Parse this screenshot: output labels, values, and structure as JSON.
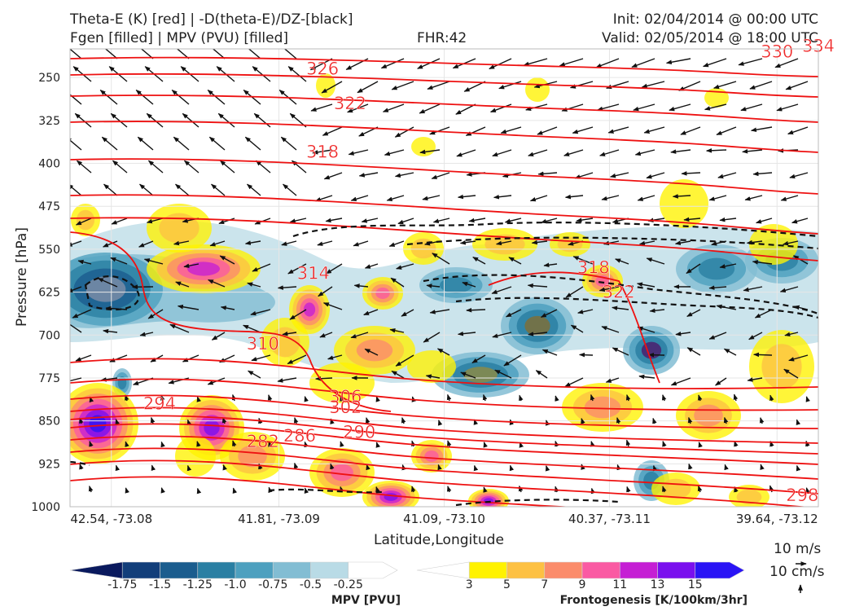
{
  "titles": {
    "top_left_1": "Theta-E (K) [red] | -D(theta-E)/DZ-[black]",
    "top_left_2": "Fgen [filled] | MPV (PVU) [filled]",
    "fhr": "FHR:42",
    "init": "Init: 02/04/2014 @ 00:00 UTC",
    "valid": "Valid: 02/05/2014 @ 18:00 UTC"
  },
  "colors": {
    "theta_e": "#ee1111",
    "mpv_scale": [
      "#0a1a5e",
      "#123e7a",
      "#1b5d8e",
      "#2a7fa3",
      "#4da0bf",
      "#82bdd3",
      "#b9dbe6",
      "#ffffff"
    ],
    "fgen_scale": [
      "#ffffff",
      "#fff200",
      "#fdc143",
      "#fb8c6b",
      "#fa5aa3",
      "#c51fd4",
      "#7a10ee",
      "#2a14f5"
    ]
  },
  "chart_data": {
    "type": "cross-section",
    "xlabel": "Latitude,Longitude",
    "ylabel": "Pressure [hPa]",
    "x_ticks": [
      "42.54, -73.08",
      "41.81, -73.09",
      "41.09, -73.10",
      "40.37, -73.11",
      "39.64, -73.12"
    ],
    "y_ticks": [
      250,
      325,
      400,
      475,
      550,
      625,
      700,
      775,
      850,
      925,
      1000
    ],
    "ylim": [
      200,
      1000
    ],
    "theta_e_labels": [
      {
        "value": 334,
        "at": [
          39.46,
          205
        ]
      },
      {
        "value": 330,
        "at": [
          39.64,
          215
        ]
      },
      {
        "value": 326,
        "at": [
          41.62,
          245
        ]
      },
      {
        "value": 322,
        "at": [
          41.5,
          305
        ]
      },
      {
        "value": 318,
        "at": [
          41.62,
          390
        ]
      },
      {
        "value": 318,
        "at": [
          40.44,
          592
        ]
      },
      {
        "value": 314,
        "at": [
          41.66,
          602
        ]
      },
      {
        "value": 322,
        "at": [
          40.33,
          635
        ]
      },
      {
        "value": 310,
        "at": [
          41.88,
          725
        ]
      },
      {
        "value": 306,
        "at": [
          41.52,
          818
        ]
      },
      {
        "value": 302,
        "at": [
          41.52,
          836
        ]
      },
      {
        "value": 294,
        "at": [
          42.33,
          830
        ]
      },
      {
        "value": 290,
        "at": [
          41.46,
          880
        ]
      },
      {
        "value": 286,
        "at": [
          41.72,
          886
        ]
      },
      {
        "value": 282,
        "at": [
          41.88,
          896
        ]
      },
      {
        "value": 298,
        "at": [
          39.53,
          990
        ]
      }
    ],
    "mpv_colorbar": {
      "label": "MPV [PVU]",
      "ticks": [
        "-1.75",
        "-1.5",
        "-1.25",
        "-1.0",
        "-0.75",
        "-0.5",
        "-0.25"
      ]
    },
    "fgen_colorbar": {
      "label": "Frontogenesis [K/100km/3hr]",
      "ticks": [
        "3",
        "5",
        "7",
        "9",
        "11",
        "13",
        "15"
      ]
    },
    "reference_vectors": [
      "10 m/s",
      "10 cm/s"
    ]
  }
}
